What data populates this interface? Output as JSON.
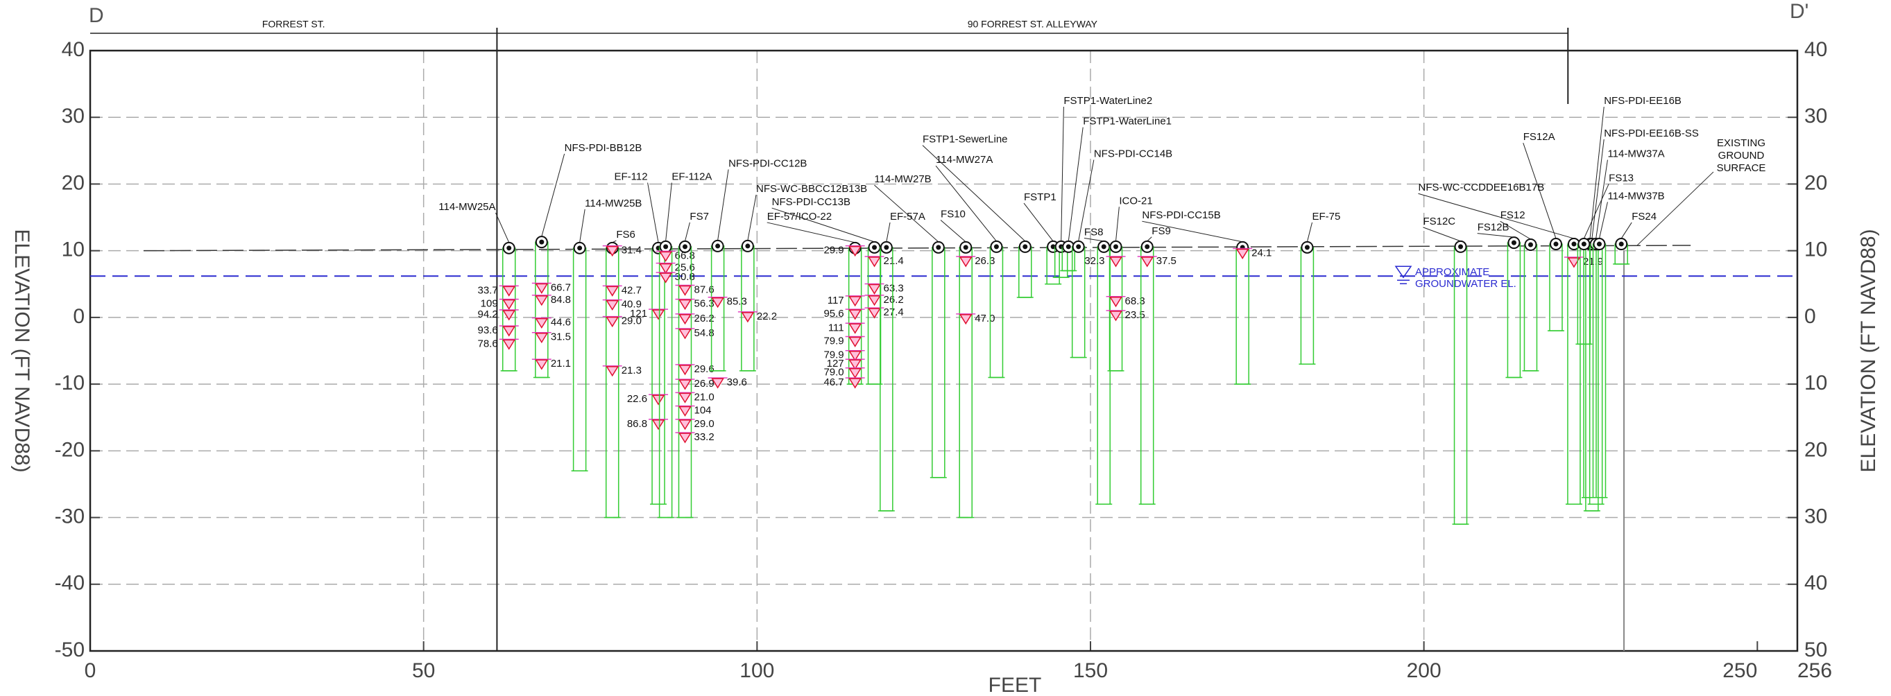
{
  "chart_data": {
    "type": "cross-section",
    "section_start": "D",
    "section_end": "D'",
    "x_label": "FEET",
    "y_label": "ELEVATION (FT NAVD88)",
    "y2_label": "ELEVATION (FT NAVD88)",
    "xlim": [
      0,
      256
    ],
    "ylim": [
      -50,
      40
    ],
    "y2lim": [
      -50,
      40
    ],
    "xticks": [
      0,
      50,
      100,
      150,
      200,
      250,
      256
    ],
    "yticks": [
      -50,
      -40,
      -30,
      -20,
      -10,
      0,
      10,
      20,
      30,
      40
    ],
    "y2ticks": [
      {
        "value": -50,
        "label": "50"
      },
      {
        "value": -40,
        "label": "40"
      },
      {
        "value": -30,
        "label": "30"
      },
      {
        "value": -20,
        "label": "20"
      },
      {
        "value": -10,
        "label": "10"
      },
      0,
      10,
      20,
      30,
      40
    ],
    "grid": true,
    "zones": [
      {
        "name": "FORREST ST.",
        "start": 0,
        "end": 61
      },
      {
        "name": "90 FORREST ST. ALLEYWAY",
        "start": 61,
        "end": 221.6
      }
    ],
    "ground_surface": {
      "label_lines": [
        "EXISTING",
        "GROUND",
        "SURFACE"
      ],
      "x": [
        8,
        240
      ],
      "elevation": [
        10,
        10.8
      ]
    },
    "groundwater": {
      "label_lines": [
        "APPROXIMATE",
        "GROUNDWATER EL."
      ],
      "elevation": 6.2
    },
    "borings": [
      {
        "name": "114-MW25A",
        "x": 62.8,
        "elevation": 10.4,
        "bottom": -8,
        "samples": [
          {
            "reading": 33.7,
            "elevation": 4
          },
          {
            "reading": 109,
            "elevation": 2
          },
          {
            "reading": 94.2,
            "elevation": 0.4
          },
          {
            "reading": 93.6,
            "elevation": -2
          },
          {
            "reading": 78.6,
            "elevation": -4
          }
        ]
      },
      {
        "name": "NFS-PDI-BB12B",
        "x": 67.7,
        "elevation": 11.3,
        "bottom": -9,
        "samples": [
          {
            "reading": 66.7,
            "elevation": 4.4
          },
          {
            "reading": 84.8,
            "elevation": 2.6
          },
          {
            "reading": 44.6,
            "elevation": -0.8
          },
          {
            "reading": 31.5,
            "elevation": -3
          },
          {
            "reading": 21.1,
            "elevation": -7
          }
        ]
      },
      {
        "name": "114-MW25B",
        "x": 73.4,
        "elevation": 10.4,
        "bottom": -23,
        "samples": []
      },
      {
        "name": "FS6",
        "x": 78.3,
        "elevation": 10.4,
        "bottom": -30,
        "samples": [
          {
            "reading": 31.4,
            "elevation": 10
          },
          {
            "reading": 42.7,
            "elevation": 4
          },
          {
            "reading": 40.9,
            "elevation": 1.9
          },
          {
            "reading": 29,
            "label": "29.0",
            "elevation": -0.6
          },
          {
            "reading": 21.3,
            "elevation": -8
          }
        ]
      },
      {
        "name": "EF-112",
        "x": 85.2,
        "elevation": 10.4,
        "bottom": -28,
        "samples": [
          {
            "reading": 121,
            "elevation": 0.5
          },
          {
            "reading": 22.6,
            "elevation": -12.3
          },
          {
            "reading": 86.8,
            "elevation": -16
          }
        ]
      },
      {
        "name": "EF-112A",
        "x": 86.3,
        "elevation": 10.6,
        "bottom": -30,
        "samples": [
          {
            "reading": 66.8,
            "elevation": 9.2
          },
          {
            "reading": 25.6,
            "elevation": 7.4
          },
          {
            "reading": 30.8,
            "elevation": 6
          }
        ]
      },
      {
        "name": "FS7",
        "x": 89.2,
        "elevation": 10.6,
        "bottom": -30,
        "samples": [
          {
            "reading": 87.6,
            "elevation": 4.1
          },
          {
            "reading": 56.3,
            "elevation": 2
          },
          {
            "reading": 26.2,
            "elevation": -0.2
          },
          {
            "reading": 54.8,
            "elevation": -2.4
          },
          {
            "reading": 29.6,
            "elevation": -7.8
          },
          {
            "reading": 26.9,
            "elevation": -10
          },
          {
            "reading": 21,
            "label": "21.0",
            "elevation": -12
          },
          {
            "reading": 104,
            "elevation": -14
          },
          {
            "reading": 29,
            "label": "29.0",
            "elevation": -16
          },
          {
            "reading": 33.2,
            "elevation": -18
          }
        ]
      },
      {
        "name": "NFS-PDI-CC12B",
        "x": 94.1,
        "elevation": 10.7,
        "bottom": -8,
        "samples": [
          {
            "reading": 85.3,
            "elevation": 2.3
          },
          {
            "reading": 39.6,
            "elevation": -9.8
          }
        ]
      },
      {
        "name": "NFS-WC-BBCC12B13B",
        "x": 98.6,
        "elevation": 10.7,
        "bottom": -8,
        "samples": [
          {
            "reading": 22.2,
            "elevation": 0.1
          }
        ]
      },
      {
        "name": "EF-57/ICO-22",
        "x": 114.7,
        "elevation": 10.4,
        "bottom": -10,
        "samples": [
          {
            "reading": 29.9,
            "elevation": 10
          },
          {
            "reading": 117,
            "elevation": 2.5
          },
          {
            "reading": 95.6,
            "elevation": 0.5
          },
          {
            "reading": 111,
            "elevation": -1.6
          },
          {
            "reading": 79.9,
            "elevation": -3.6
          },
          {
            "reading": 79.9,
            "elevation": -5.7
          },
          {
            "reading": 127,
            "elevation": -7
          },
          {
            "reading": 79,
            "label": "79.0",
            "elevation": -8.3
          },
          {
            "reading": 46.7,
            "elevation": -9.8
          }
        ]
      },
      {
        "name": "NFS-PDI-CC13B",
        "x": 117.6,
        "elevation": 10.5,
        "bottom": -10,
        "samples": [
          {
            "reading": 21.4,
            "elevation": 8.4
          },
          {
            "reading": 63.3,
            "elevation": 4.3
          },
          {
            "reading": 26.2,
            "elevation": 2.6
          },
          {
            "reading": 27.4,
            "elevation": 0.7
          }
        ]
      },
      {
        "name": "EF-57A",
        "x": 119.4,
        "elevation": 10.5,
        "bottom": -29,
        "samples": []
      },
      {
        "name": "114-MW27B",
        "x": 127.2,
        "elevation": 10.5,
        "bottom": -24,
        "samples": []
      },
      {
        "name": "FS10",
        "x": 131.3,
        "elevation": 10.5,
        "bottom": -30,
        "samples": [
          {
            "reading": 26.3,
            "elevation": 8.4
          },
          {
            "reading": 47,
            "label": "47.0",
            "elevation": -0.2
          }
        ]
      },
      {
        "name": "114-MW27A",
        "x": 135.9,
        "elevation": 10.6,
        "bottom": -9,
        "samples": []
      },
      {
        "name": "FSTP1-SewerLine",
        "x": 140.2,
        "elevation": 10.6,
        "bottom": 3,
        "samples": []
      },
      {
        "name": "FSTP1",
        "x": 144.4,
        "elevation": 10.6,
        "bottom": 5,
        "samples": []
      },
      {
        "name": "FSTP1-WaterLine2",
        "x": 145.6,
        "elevation": 10.6,
        "bottom": 6,
        "samples": []
      },
      {
        "name": "FSTP1-WaterLine1",
        "x": 146.7,
        "elevation": 10.6,
        "bottom": 7,
        "samples": []
      },
      {
        "name": "NFS-PDI-CC14B",
        "x": 148.2,
        "elevation": 10.6,
        "bottom": -6,
        "samples": []
      },
      {
        "name": "FS8",
        "x": 152,
        "elevation": 10.6,
        "bottom": -28,
        "samples": []
      },
      {
        "name": "ICO-21",
        "x": 153.8,
        "elevation": 10.6,
        "bottom": -8,
        "samples": [
          {
            "reading": 32.3,
            "elevation": 8.4
          },
          {
            "reading": 68.3,
            "elevation": 2.4
          },
          {
            "reading": 23.5,
            "elevation": 0.3
          }
        ]
      },
      {
        "name": "FS9",
        "x": 158.5,
        "elevation": 10.6,
        "bottom": -28,
        "samples": [
          {
            "reading": 37.5,
            "elevation": 8.4
          }
        ]
      },
      {
        "name": "NFS-PDI-CC15B",
        "x": 172.8,
        "elevation": 10.5,
        "bottom": -10,
        "samples": [
          {
            "reading": 24.1,
            "elevation": 9.6
          }
        ]
      },
      {
        "name": "EF-75",
        "x": 182.5,
        "elevation": 10.5,
        "bottom": -7,
        "samples": []
      },
      {
        "name": "FS12C",
        "x": 205.5,
        "elevation": 10.6,
        "bottom": -31,
        "samples": []
      },
      {
        "name": "FS12B",
        "x": 213.5,
        "elevation": 11.2,
        "bottom": -9,
        "samples": []
      },
      {
        "name": "FS12",
        "x": 216,
        "elevation": 10.9,
        "bottom": -8,
        "samples": []
      },
      {
        "name": "FS12A",
        "x": 219.8,
        "elevation": 11,
        "bottom": -2,
        "samples": []
      },
      {
        "name": "NFS-WC-CCDDEE16B17B",
        "x": 222.5,
        "elevation": 11,
        "bottom": -28,
        "samples": [
          {
            "reading": 21.9,
            "elevation": 8.3
          }
        ]
      },
      {
        "name": "NFS-PDI-EE16B",
        "x": 224.9,
        "elevation": 11,
        "bottom": -27,
        "samples": []
      },
      {
        "name": "NFS-PDI-EE16B-SS",
        "x": 225.2,
        "elevation": 11,
        "bottom": -29,
        "samples": []
      },
      {
        "name": "114-MW37A",
        "x": 225.8,
        "elevation": 11,
        "bottom": -28,
        "samples": []
      },
      {
        "name": "FS13",
        "x": 224,
        "elevation": 11,
        "bottom": -4,
        "samples": []
      },
      {
        "name": "114-MW37B",
        "x": 226.3,
        "elevation": 11,
        "bottom": -27,
        "samples": []
      },
      {
        "name": "FS24",
        "x": 229.6,
        "elevation": 11,
        "bottom": 8,
        "samples": []
      }
    ]
  }
}
